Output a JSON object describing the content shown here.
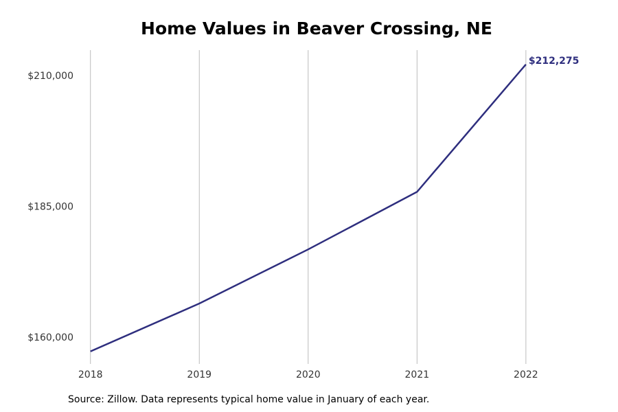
{
  "chart_data": {
    "type": "line",
    "title": "Home Values in Beaver Crossing, NE",
    "caption": "Source: Zillow. Data represents typical home value in January of each year.",
    "x": [
      2018,
      2019,
      2020,
      2021,
      2022
    ],
    "series": [
      {
        "name": "Home value",
        "color": "#2e2e7e",
        "values": [
          157400,
          166550,
          176900,
          187900,
          212275
        ],
        "value_labels": [
          null,
          null,
          null,
          null,
          "$212,275"
        ]
      }
    ],
    "xlim": [
      2017.8,
      2022.6
    ],
    "xticks": [
      2018,
      2019,
      2020,
      2021,
      2022
    ],
    "ylim": [
      155000,
      215000
    ],
    "yticks": [
      {
        "value": 160000,
        "label": "$160,000"
      },
      {
        "value": 185000,
        "label": "$185,000"
      },
      {
        "value": 210000,
        "label": "$210,000"
      }
    ],
    "grid": "x"
  }
}
